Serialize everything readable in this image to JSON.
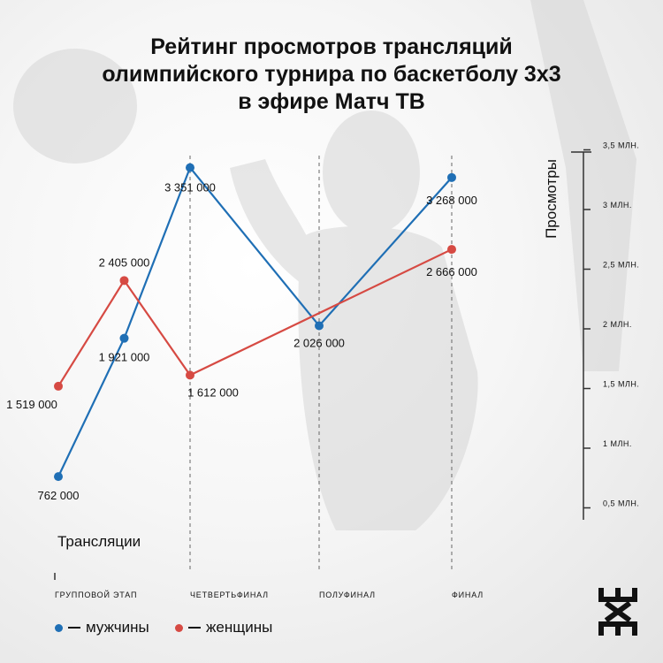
{
  "title_lines": [
    "Рейтинг просмотров трансляций",
    "олимпийского турнира по баскетболу 3х3",
    "в эфире Матч ТВ"
  ],
  "colors": {
    "men": "#1f6fb5",
    "women": "#d64a43",
    "axis": "#333333",
    "text": "#111111"
  },
  "logo_icon": "3x3-logo-icon",
  "chart_data": {
    "type": "line",
    "xlabel": "Трансляции",
    "ylabel": "Просмотры",
    "x_ticks": [
      "ГРУППОВОЙ ЭТАП",
      "ЧЕТВЕРТЬФИНАЛ",
      "ПОЛУФИНАЛ",
      "ФИНАЛ"
    ],
    "y_ticks": [
      "0,5 МЛН.",
      "1 МЛН.",
      "1,5 МЛН.",
      "2 МЛН.",
      "2,5 МЛН.",
      "3 МЛН.",
      "3,5 МЛН."
    ],
    "y_tick_values": [
      500000,
      1000000,
      1500000,
      2000000,
      2500000,
      3000000,
      3500000
    ],
    "ylim": [
      0,
      3500000
    ],
    "grid": "vertical dashed lines at stages",
    "series": [
      {
        "name": "мужчины",
        "color": "#1f6fb5",
        "points": [
          {
            "stage": 0.0,
            "value": 762000,
            "label": "762 000"
          },
          {
            "stage": 0.5,
            "value": 1921000,
            "label": "1 921 000"
          },
          {
            "stage": 1.0,
            "value": 3351000,
            "label": "3 351 000"
          },
          {
            "stage": 2.0,
            "value": 2026000,
            "label": "2 026 000"
          },
          {
            "stage": 3.0,
            "value": 3268000,
            "label": "3 268 000"
          }
        ]
      },
      {
        "name": "женщины",
        "color": "#d64a43",
        "points": [
          {
            "stage": 0.0,
            "value": 1519000,
            "label": "1 519 000"
          },
          {
            "stage": 0.5,
            "value": 2405000,
            "label": "2 405 000"
          },
          {
            "stage": 1.0,
            "value": 1612000,
            "label": "1 612 000"
          },
          {
            "stage": 3.0,
            "value": 2666000,
            "label": "2 666 000"
          }
        ]
      }
    ]
  }
}
